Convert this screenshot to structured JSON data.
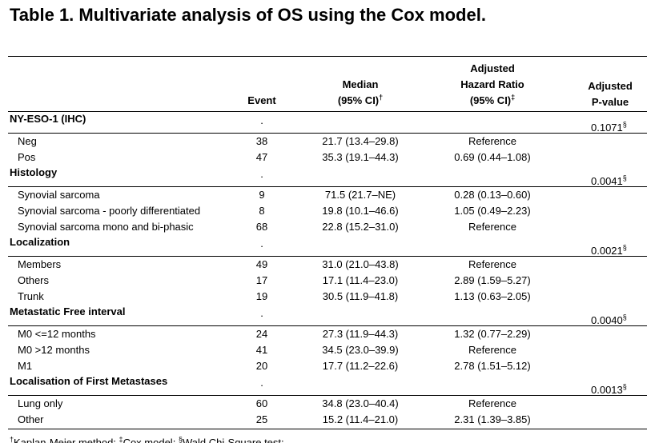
{
  "title": "Table 1. Multivariate analysis of OS using the Cox model.",
  "columns": [
    {
      "lines": [
        "Event"
      ]
    },
    {
      "lines": [
        "Median",
        "(95% CI)"
      ],
      "sup": "†"
    },
    {
      "lines": [
        "Adjusted",
        "Hazard Ratio",
        "(95% CI)"
      ],
      "sup": "‡"
    },
    {
      "lines": [
        "Adjusted",
        "P-value"
      ]
    }
  ],
  "groups": [
    {
      "label": "NY-ESO-1 (IHC)",
      "event": ".",
      "p_value": "0.1071",
      "p_sup": "§",
      "rows": [
        {
          "label": "Neg",
          "event": 38,
          "median": "21.7 (13.4–29.8)",
          "hr": "Reference"
        },
        {
          "label": "Pos",
          "event": 47,
          "median": "35.3 (19.1–44.3)",
          "hr": "0.69 (0.44–1.08)"
        }
      ]
    },
    {
      "label": "Histology",
      "event": ".",
      "p_value": "0.0041",
      "p_sup": "§",
      "rows": [
        {
          "label": "Synovial sarcoma",
          "event": 9,
          "median": "71.5 (21.7–NE)",
          "hr": "0.28 (0.13–0.60)"
        },
        {
          "label": "Synovial sarcoma - poorly differentiated",
          "event": 8,
          "median": "19.8 (10.1–46.6)",
          "hr": "1.05 (0.49–2.23)"
        },
        {
          "label": "Synovial sarcoma mono and bi-phasic",
          "event": 68,
          "median": "22.8 (15.2–31.0)",
          "hr": "Reference"
        }
      ]
    },
    {
      "label": "Localization",
      "event": ".",
      "p_value": "0.0021",
      "p_sup": "§",
      "rows": [
        {
          "label": "Members",
          "event": 49,
          "median": "31.0 (21.0–43.8)",
          "hr": "Reference"
        },
        {
          "label": "Others",
          "event": 17,
          "median": "17.1 (11.4–23.0)",
          "hr": "2.89 (1.59–5.27)"
        },
        {
          "label": "Trunk",
          "event": 19,
          "median": "30.5 (11.9–41.8)",
          "hr": "1.13 (0.63–2.05)"
        }
      ]
    },
    {
      "label": "Metastatic Free interval",
      "event": ".",
      "p_value": "0.0040",
      "p_sup": "§",
      "rows": [
        {
          "label": "M0 <=12 months",
          "event": 24,
          "median": "27.3 (11.9–44.3)",
          "hr": "1.32 (0.77–2.29)"
        },
        {
          "label": "M0 >12 months",
          "event": 41,
          "median": "34.5 (23.0–39.9)",
          "hr": "Reference"
        },
        {
          "label": "M1",
          "event": 20,
          "median": "17.7 (11.2–22.6)",
          "hr": "2.78 (1.51–5.12)"
        }
      ]
    },
    {
      "label": "Localisation of First Metastases",
      "event": ".",
      "p_value": "0.0013",
      "p_sup": "§",
      "rows": [
        {
          "label": "Lung only",
          "event": 60,
          "median": "34.8 (23.0–40.4)",
          "hr": "Reference"
        },
        {
          "label": "Other",
          "event": 25,
          "median": "15.2 (11.4–21.0)",
          "hr": "2.31 (1.39–3.85)"
        }
      ]
    }
  ],
  "footnotes": [
    {
      "sup": "†",
      "text": "Kaplan-Meier method;"
    },
    {
      "sup": "‡",
      "text": "Cox model;"
    },
    {
      "sup": "§",
      "text": "Wald Chi-Square test;"
    }
  ]
}
